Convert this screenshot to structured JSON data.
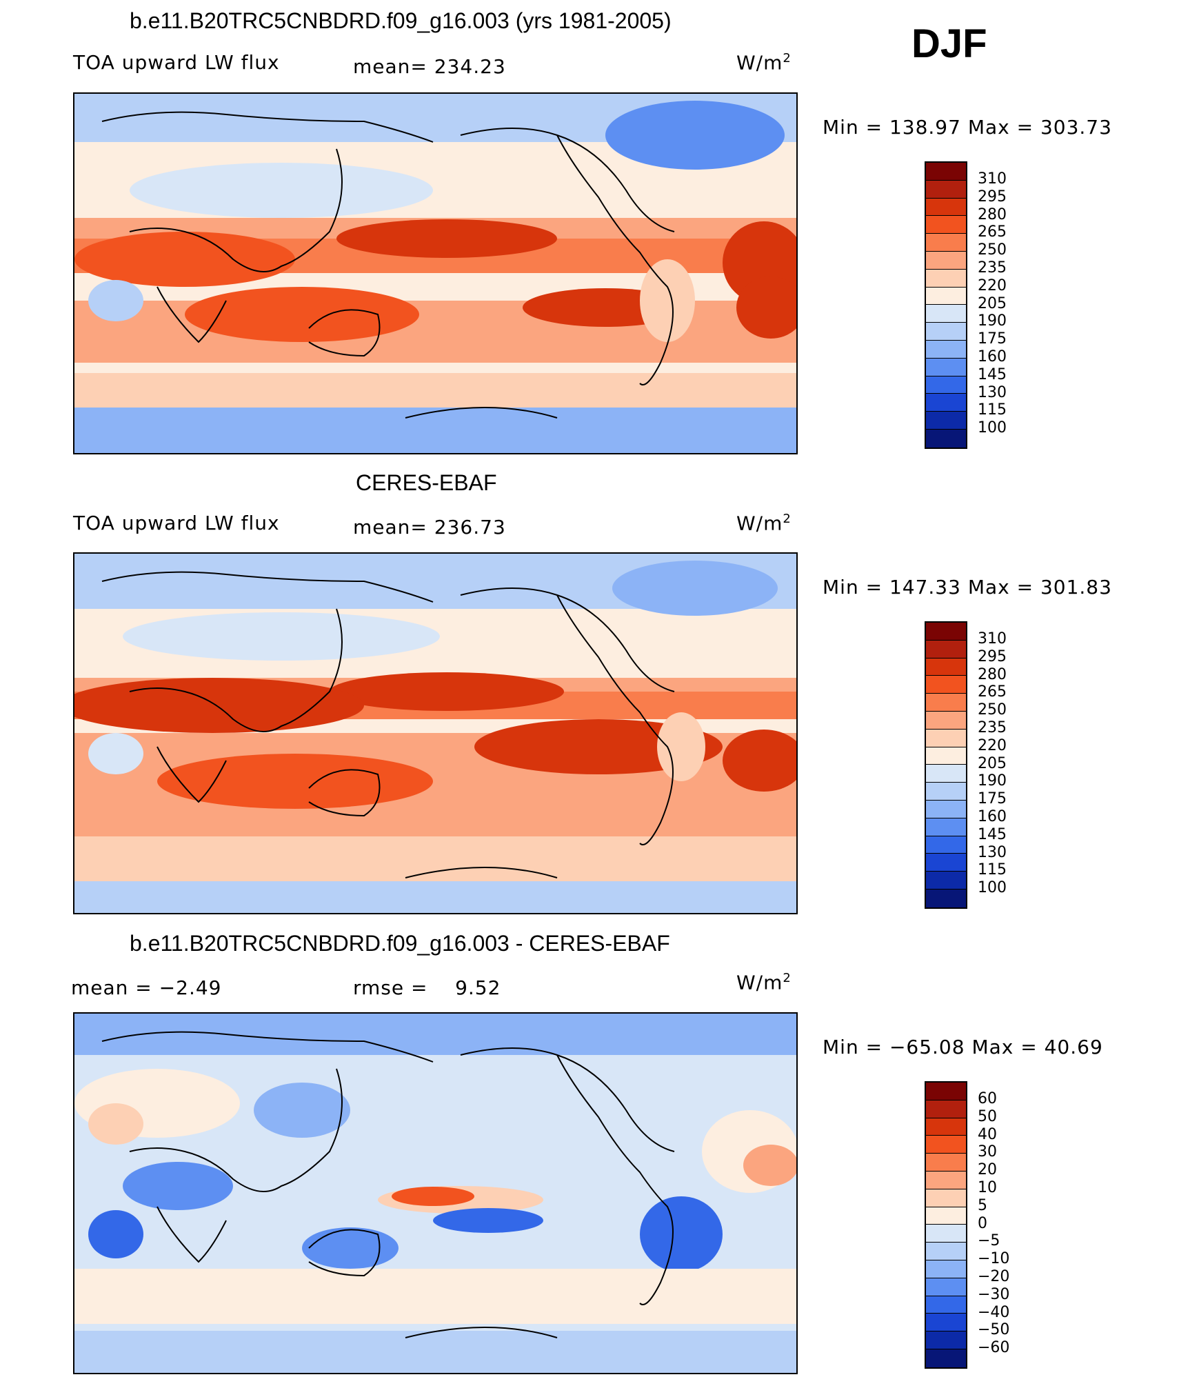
{
  "season": "DJF",
  "panels": [
    {
      "title": "b.e11.B20TRC5CNBDRD.f09_g16.003 (yrs 1981-2005)",
      "left_label": "TOA upward LW flux",
      "stat_label": "mean=",
      "stat_value": "234.23",
      "units": "W/m",
      "units_sup": "2",
      "min_max": "Min  =  138.97  Max  =  303.73",
      "colorbar_labels": [
        "310",
        "295",
        "280",
        "265",
        "250",
        "235",
        "220",
        "205",
        "190",
        "175",
        "160",
        "145",
        "130",
        "115",
        "100"
      ]
    },
    {
      "title": "CERES-EBAF",
      "left_label": "TOA upward LW flux",
      "stat_label": "mean=",
      "stat_value": "236.73",
      "units": "W/m",
      "units_sup": "2",
      "min_max": "Min  =  147.33  Max  =  301.83",
      "colorbar_labels": [
        "310",
        "295",
        "280",
        "265",
        "250",
        "235",
        "220",
        "205",
        "190",
        "175",
        "160",
        "145",
        "130",
        "115",
        "100"
      ]
    },
    {
      "title": "b.e11.B20TRC5CNBDRD.f09_g16.003 - CERES-EBAF",
      "left_label": "mean  =    −2.49",
      "stat_label": "rmse  =",
      "stat_value": "9.52",
      "units": "W/m",
      "units_sup": "2",
      "min_max": "Min  =  −65.08  Max  =    40.69",
      "colorbar_labels": [
        "60",
        "50",
        "40",
        "30",
        "20",
        "10",
        "5",
        "0",
        "−5",
        "−10",
        "−20",
        "−30",
        "−40",
        "−50",
        "−60"
      ]
    }
  ],
  "colorbar_colors": [
    "#7a0403",
    "#b1200e",
    "#d7350c",
    "#f2531f",
    "#f97d4c",
    "#fba57f",
    "#fdd0b4",
    "#fdeee0",
    "#d8e6f7",
    "#b6d0f7",
    "#8cb3f6",
    "#5d8ff2",
    "#3368e8",
    "#1a45d3",
    "#0c2aa8",
    "#071677"
  ]
}
